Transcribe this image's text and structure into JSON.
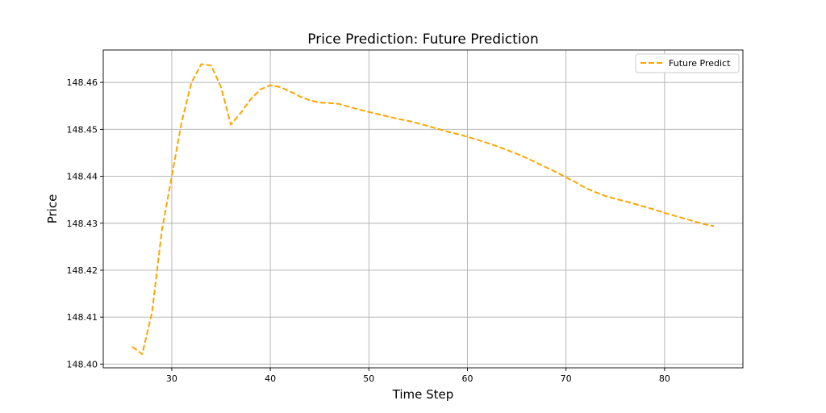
{
  "chart_data": {
    "type": "line",
    "title": "Price Prediction: Future Prediction",
    "xlabel": "Time Step",
    "ylabel": "Price",
    "xlim": [
      23.05,
      87.95
    ],
    "ylim": [
      148.3992,
      148.4669
    ],
    "xticks": [
      30,
      40,
      50,
      60,
      70,
      80
    ],
    "yticks": [
      148.4,
      148.41,
      148.42,
      148.43,
      148.44,
      148.45,
      148.46
    ],
    "ytick_format": 2,
    "grid": true,
    "legend_position": "top-right",
    "series": [
      {
        "name": "Future Predict",
        "color": "#ffa500",
        "dashed": true,
        "x": [
          26,
          27,
          28,
          29,
          30,
          31,
          32,
          33,
          34,
          35,
          36,
          37,
          38,
          39,
          40,
          41,
          42,
          43,
          44,
          45,
          46,
          47,
          48,
          49,
          50,
          51,
          52,
          53,
          54,
          55,
          56,
          57,
          58,
          59,
          60,
          61,
          62,
          63,
          64,
          65,
          66,
          67,
          68,
          69,
          70,
          71,
          72,
          73,
          74,
          75,
          76,
          77,
          78,
          79,
          80,
          81,
          82,
          83,
          84,
          85
        ],
        "values": [
          148.4037,
          148.4021,
          148.411,
          148.4285,
          148.44,
          148.4515,
          148.46,
          148.4639,
          148.4636,
          148.459,
          148.451,
          148.4535,
          148.4564,
          148.4585,
          148.4594,
          148.459,
          148.4581,
          148.457,
          148.4562,
          148.4557,
          148.4556,
          148.4554,
          148.4548,
          148.4542,
          148.4537,
          148.4532,
          148.4527,
          148.4522,
          148.4518,
          148.4513,
          148.4507,
          148.4501,
          148.4495,
          148.449,
          148.4484,
          148.4478,
          148.4471,
          148.4464,
          148.4456,
          148.4448,
          148.4439,
          148.4429,
          148.4419,
          148.4409,
          148.4398,
          148.4387,
          148.4375,
          148.4366,
          148.4358,
          148.4352,
          148.4347,
          148.4341,
          148.4335,
          148.4329,
          148.4322,
          148.4316,
          148.431,
          148.4304,
          148.4298,
          148.4294
        ]
      }
    ]
  }
}
